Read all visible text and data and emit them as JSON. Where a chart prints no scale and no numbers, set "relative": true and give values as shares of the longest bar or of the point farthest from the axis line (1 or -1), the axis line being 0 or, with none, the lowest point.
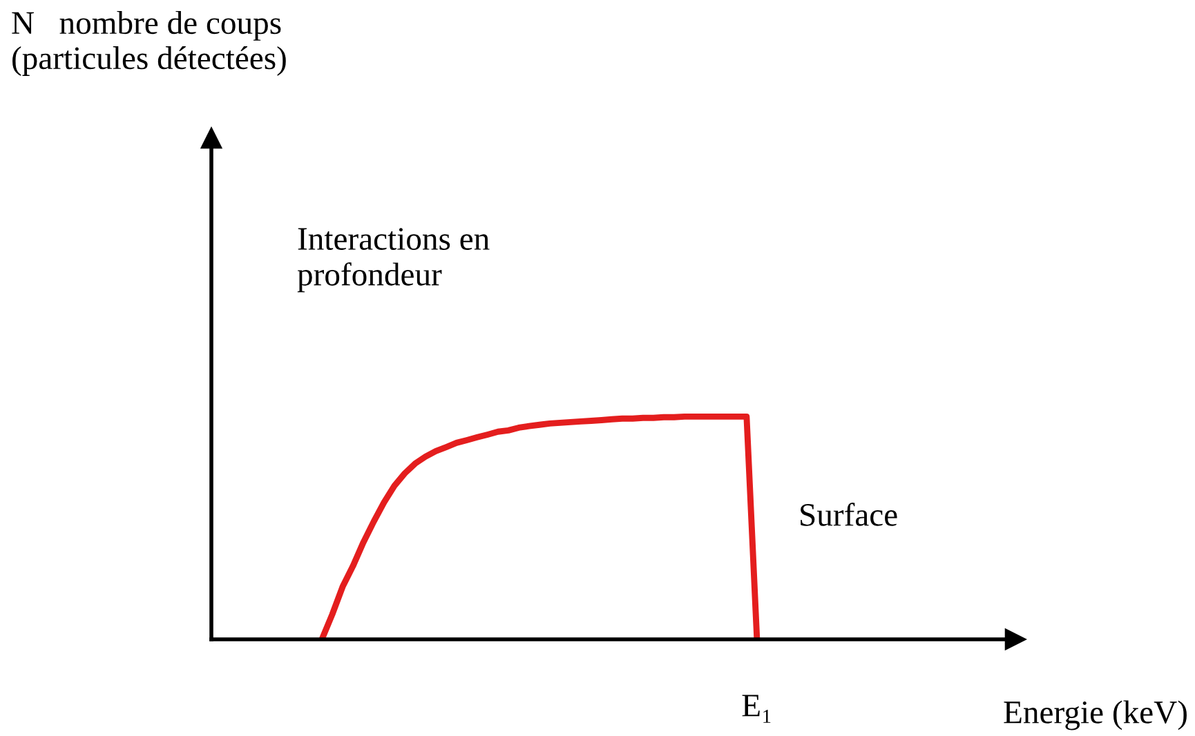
{
  "chart_data": {
    "type": "line",
    "relative": true,
    "annotations": [
      "N   nombre de coups\n(particules détectées)",
      "Interactions en\nprofondeur",
      "Surface",
      "E₁",
      "Energie (keV)"
    ],
    "categories": [
      null,
      null,
      null,
      null,
      null,
      null,
      null,
      null,
      null,
      null,
      null,
      null,
      null,
      null,
      null,
      null,
      null,
      null,
      null,
      null,
      null,
      null,
      null,
      null,
      null,
      null,
      null,
      null,
      null,
      null,
      null,
      null,
      null,
      null,
      null,
      null,
      null,
      null,
      null,
      null,
      null,
      null,
      null
    ],
    "series": [
      {
        "color": "#e41e1e",
        "values": [
          0,
          0.112,
          0.236,
          0.329,
          0.435,
          0.528,
          0.615,
          0.689,
          0.745,
          0.789,
          0.82,
          0.845,
          0.863,
          0.882,
          0.894,
          0.907,
          0.919,
          0.932,
          0.938,
          0.95,
          0.957,
          0.963,
          0.969,
          0.972,
          0.975,
          0.978,
          0.981,
          0.984,
          0.988,
          0.991,
          0.991,
          0.994,
          0.994,
          0.997,
          0.997,
          1,
          1,
          1,
          1,
          1,
          1,
          1,
          0
        ]
      }
    ],
    "legend": false,
    "marker": "none",
    "line_style": "solid"
  }
}
